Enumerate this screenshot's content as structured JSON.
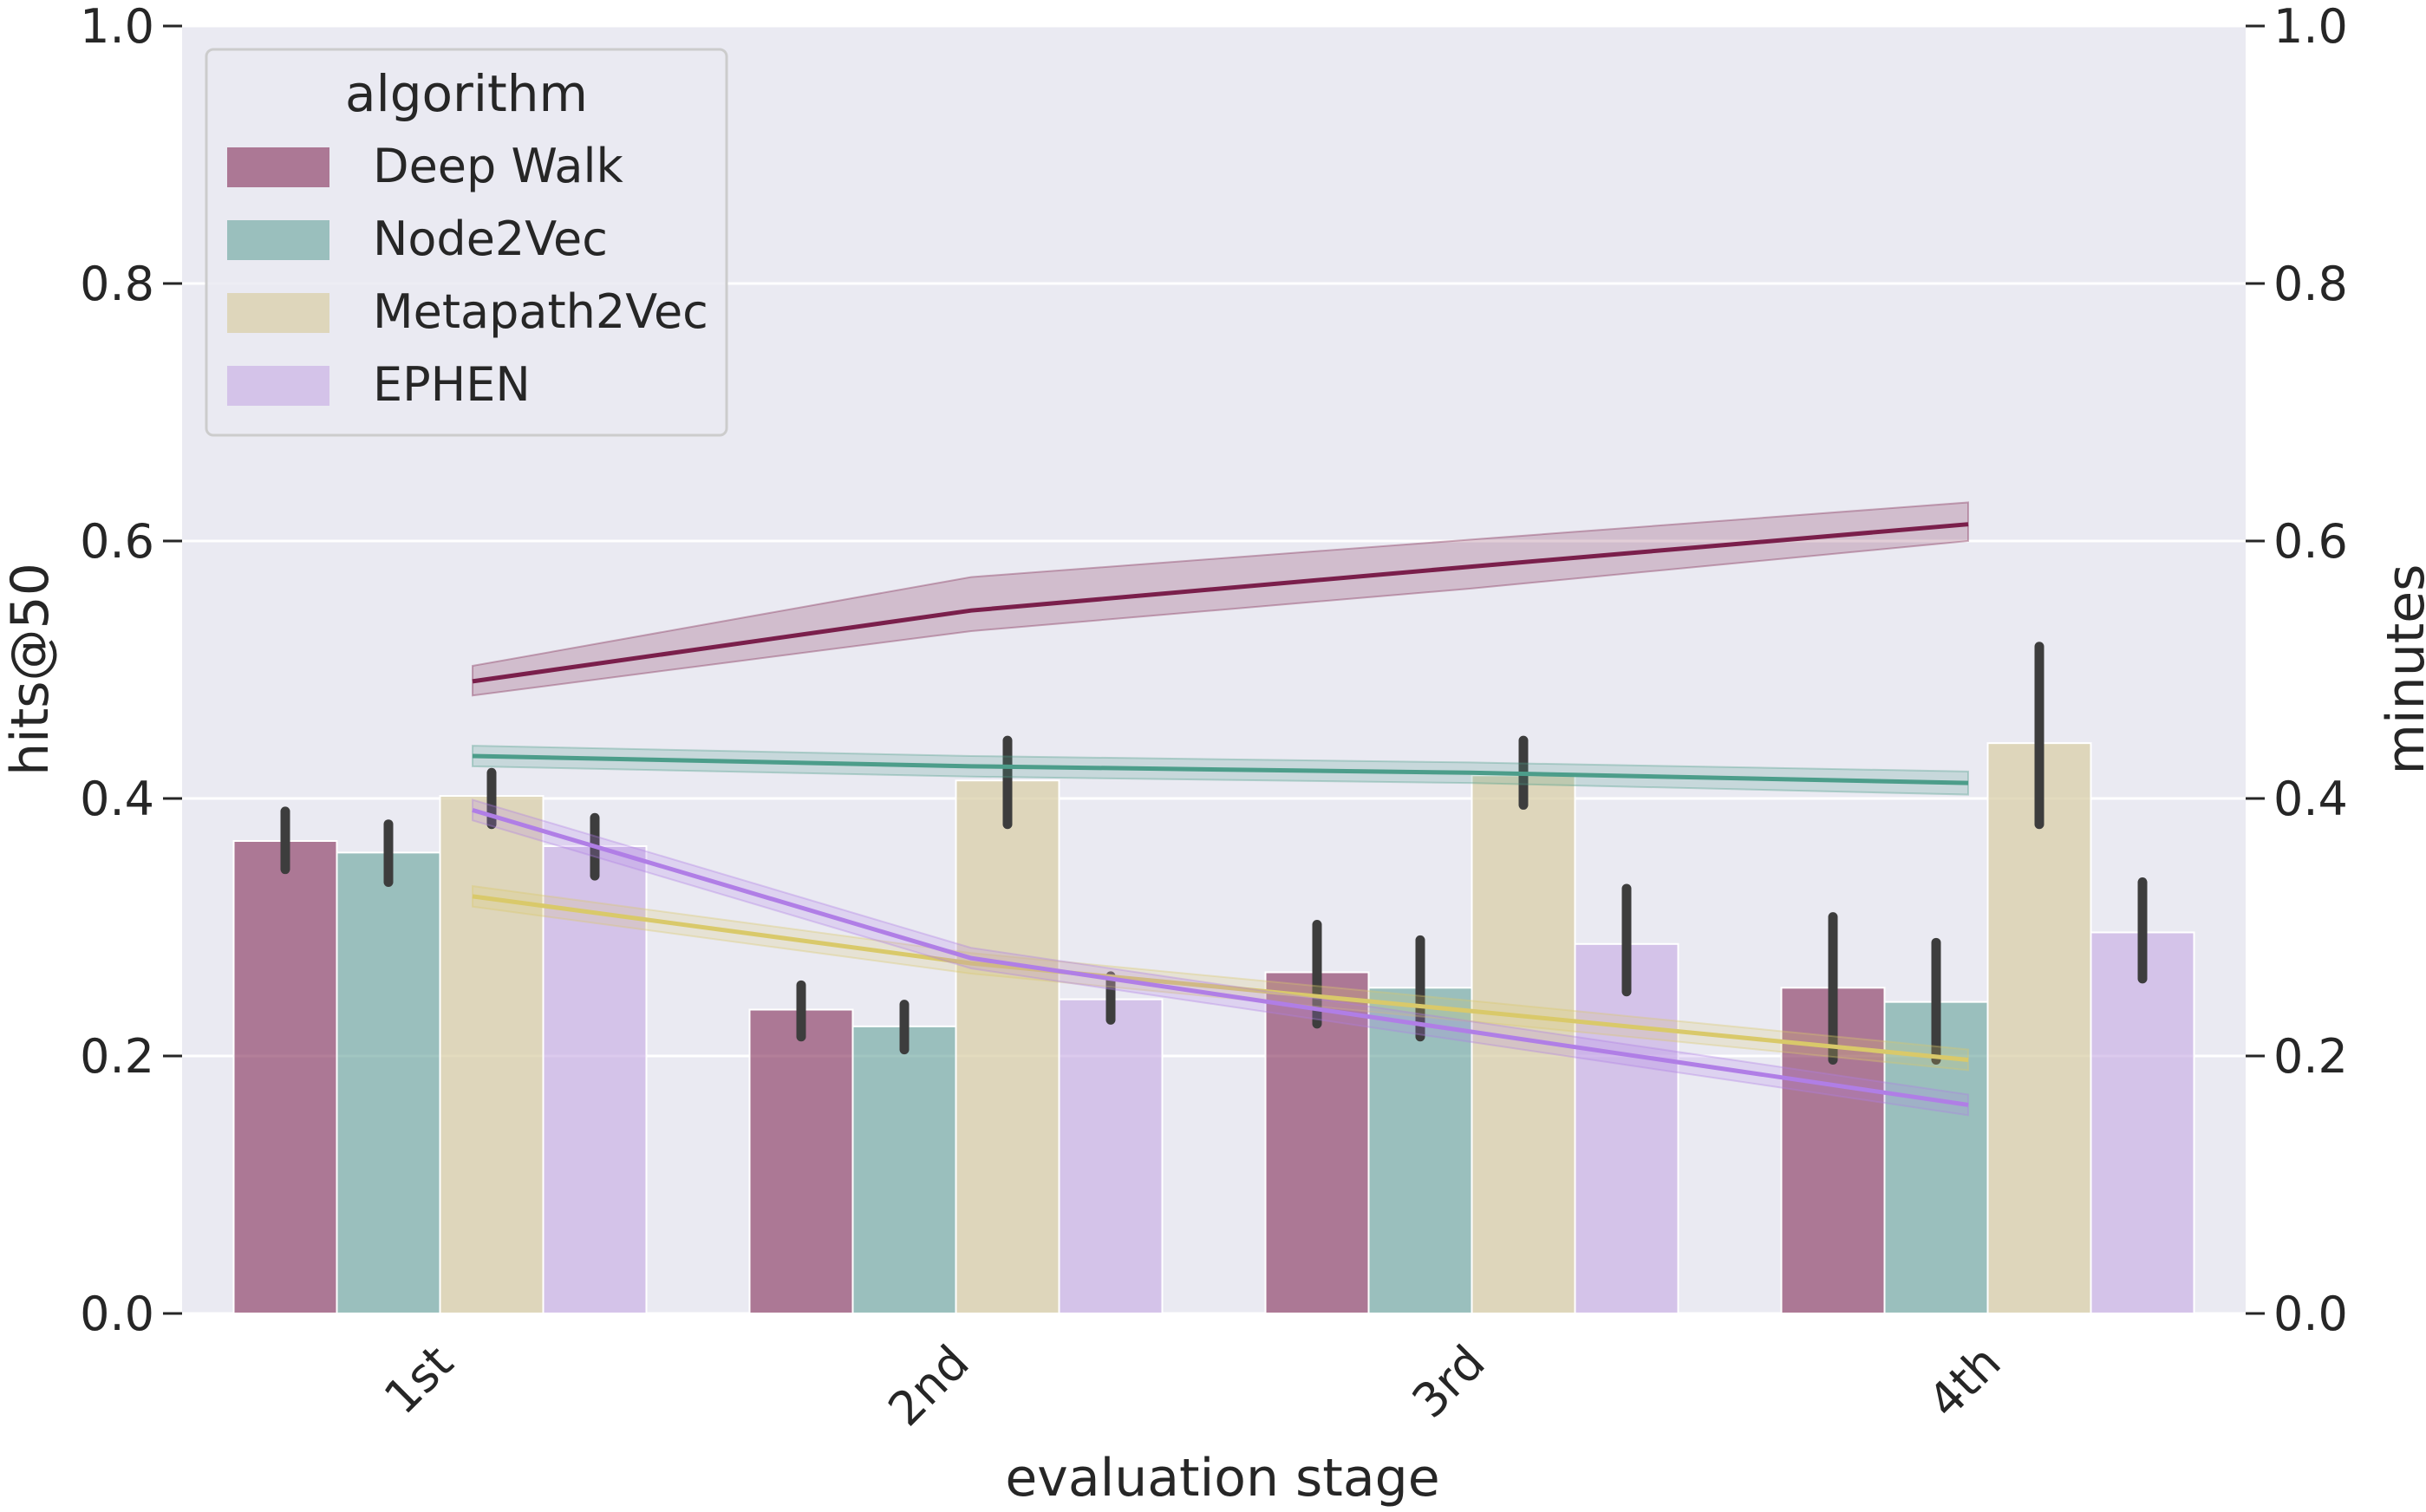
{
  "chart_data": {
    "type": "bar",
    "title": "",
    "xlabel": "evaluation stage",
    "ylabel": "hits@50",
    "ylabel_right": "minutes",
    "categories": [
      "1st",
      "2nd",
      "3rd",
      "4th"
    ],
    "ylim": [
      0,
      1
    ],
    "ylim_right": [
      0,
      1
    ],
    "yticks": [
      "0.0",
      "0.2",
      "0.4",
      "0.6",
      "0.8",
      "1.0"
    ],
    "yticks_right": [
      "0.0",
      "0.2",
      "0.4",
      "0.6",
      "0.8",
      "1.0"
    ],
    "grid": true,
    "legend": {
      "title": "algorithm",
      "position": "top-left"
    },
    "series": [
      {
        "name": "Deep Walk",
        "color": "#8b3a62",
        "line_color": "#7a1f4b",
        "values": [
          0.367,
          0.236,
          0.265,
          0.253
        ],
        "error": [
          [
            0.345,
            0.39
          ],
          [
            0.215,
            0.255
          ],
          [
            0.225,
            0.302
          ],
          [
            0.197,
            0.308
          ]
        ],
        "line_values": [
          0.491,
          0.546,
          0.58,
          0.613
        ],
        "line_band": [
          [
            0.48,
            0.503
          ],
          [
            0.53,
            0.572
          ],
          [
            0.563,
            0.601
          ],
          [
            0.6,
            0.63
          ]
        ]
      },
      {
        "name": "Node2Vec",
        "color": "#6fa8a0",
        "line_color": "#4c9d8a",
        "values": [
          0.358,
          0.223,
          0.253,
          0.242
        ],
        "error": [
          [
            0.335,
            0.38
          ],
          [
            0.205,
            0.24
          ],
          [
            0.215,
            0.29
          ],
          [
            0.197,
            0.288
          ]
        ],
        "line_values": [
          0.433,
          0.425,
          0.42,
          0.412
        ],
        "line_band": [
          [
            0.425,
            0.441
          ],
          [
            0.417,
            0.433
          ],
          [
            0.412,
            0.428
          ],
          [
            0.403,
            0.421
          ]
        ]
      },
      {
        "name": "Metapath2Vec",
        "color": "#d9cfa8",
        "line_color": "#d9c96a",
        "values": [
          0.402,
          0.414,
          0.418,
          0.443
        ],
        "error": [
          [
            0.38,
            0.42
          ],
          [
            0.38,
            0.445
          ],
          [
            0.395,
            0.445
          ],
          [
            0.38,
            0.518
          ]
        ],
        "line_values": [
          0.324,
          0.272,
          0.235,
          0.197
        ],
        "line_band": [
          [
            0.316,
            0.332
          ],
          [
            0.264,
            0.28
          ],
          [
            0.227,
            0.243
          ],
          [
            0.189,
            0.205
          ]
        ]
      },
      {
        "name": "EPHEN",
        "color": "#c8aee4",
        "line_color": "#b07ee6",
        "values": [
          0.363,
          0.244,
          0.287,
          0.296
        ],
        "error": [
          [
            0.34,
            0.385
          ],
          [
            0.228,
            0.262
          ],
          [
            0.25,
            0.33
          ],
          [
            0.26,
            0.335
          ]
        ],
        "line_values": [
          0.391,
          0.276,
          0.219,
          0.162
        ],
        "line_band": [
          [
            0.383,
            0.399
          ],
          [
            0.268,
            0.284
          ],
          [
            0.211,
            0.227
          ],
          [
            0.154,
            0.17
          ]
        ]
      }
    ]
  }
}
